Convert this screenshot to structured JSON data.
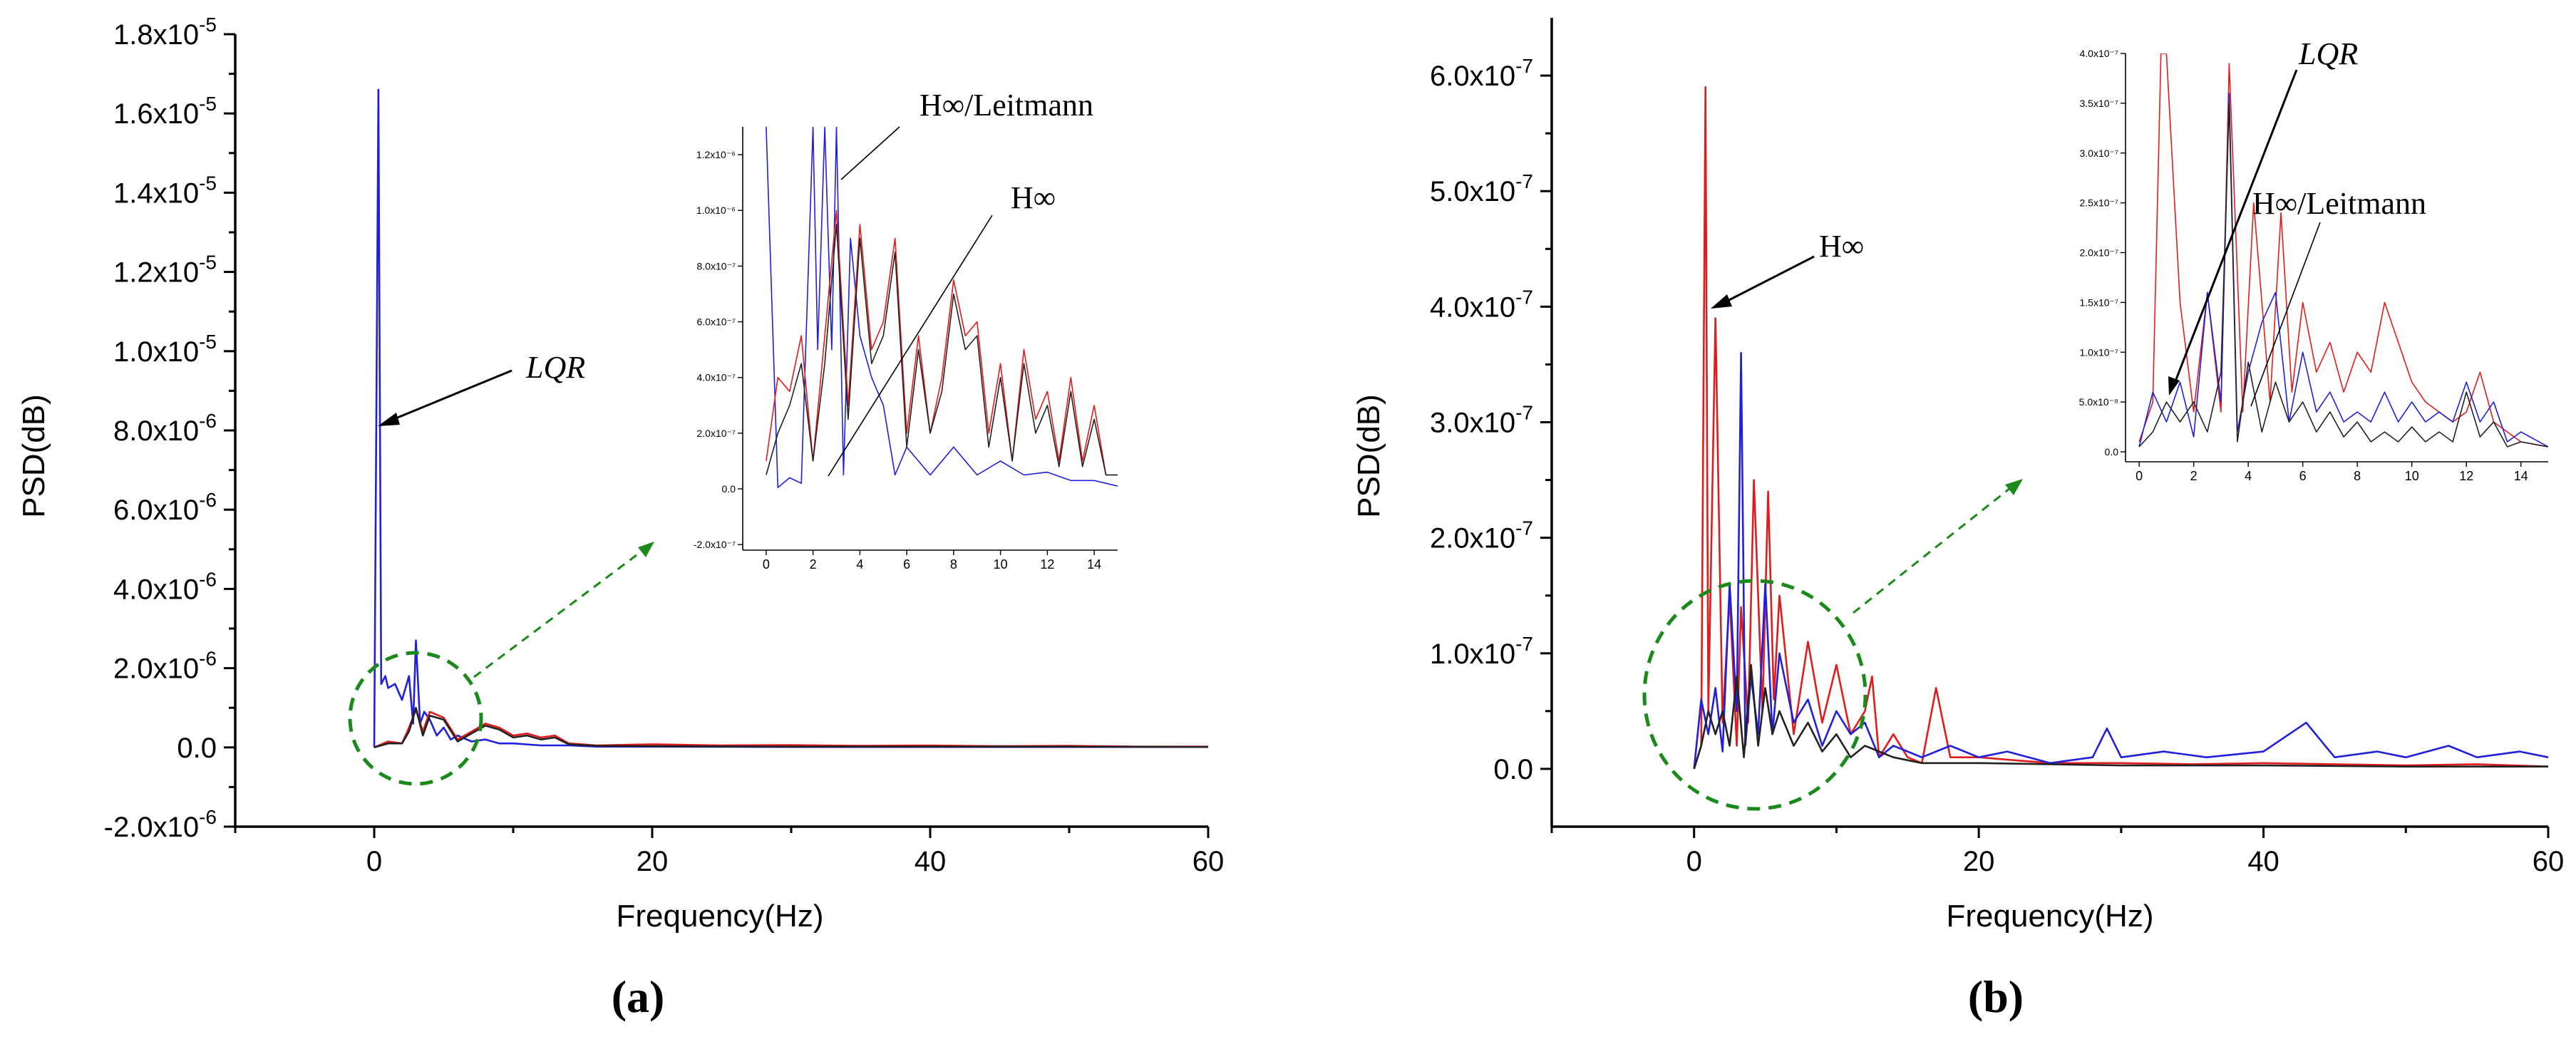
{
  "chart_data": [
    {
      "type": "line",
      "panel_label": "(a)",
      "xlabel": "Frequency(Hz)",
      "ylabel": "PSD(dB)",
      "xlim": [
        -10,
        60
      ],
      "ylim": [
        -2e-06,
        1.8e-05
      ],
      "xticks": [
        0,
        20,
        40,
        60
      ],
      "xtick_labels": [
        "0",
        "20",
        "40",
        "60"
      ],
      "yticks": [
        -2e-06,
        0,
        2e-06,
        4e-06,
        6e-06,
        8e-06,
        1e-05,
        1.2e-05,
        1.4e-05,
        1.6e-05,
        1.8e-05
      ],
      "ytick_mantissa": [
        "-2.0x10",
        "0.0",
        "2.0x10",
        "4.0x10",
        "6.0x10",
        "8.0x10",
        "1.0x10",
        "1.2x10",
        "1.4x10",
        "1.6x10",
        "1.8x10"
      ],
      "ytick_exponent": [
        "-6",
        "",
        "-6",
        "-6",
        "-6",
        "-6",
        "-5",
        "-5",
        "-5",
        "-5",
        "-5"
      ],
      "series": [
        {
          "name": "LQR",
          "color": "#1f1fdc",
          "x": [
            0,
            0.3,
            0.5,
            0.8,
            1.0,
            1.5,
            2.0,
            2.5,
            2.8,
            3.0,
            3.3,
            3.6,
            4.0,
            4.5,
            5.0,
            5.5,
            6,
            7,
            8,
            9,
            10,
            12,
            14,
            16,
            20,
            30,
            40,
            50,
            60
          ],
          "y": [
            0,
            1.66e-05,
            1.6e-06,
            1.8e-06,
            1.5e-06,
            1.6e-06,
            1.2e-06,
            1.8e-06,
            6e-07,
            2.7e-06,
            6e-07,
            9e-07,
            7e-07,
            3e-07,
            5e-07,
            2e-07,
            3e-07,
            1.5e-07,
            2e-07,
            1e-07,
            1e-07,
            5e-08,
            5e-08,
            2e-08,
            2e-08,
            1e-08,
            1e-08,
            1e-08,
            1e-08
          ]
        },
        {
          "name": "H∞",
          "color": "#e01c1c",
          "x": [
            0,
            1,
            2,
            2.5,
            3,
            3.5,
            4,
            5,
            6,
            7,
            8,
            9,
            10,
            11,
            12,
            13,
            14,
            16,
            20,
            25,
            30,
            35,
            40,
            45,
            50,
            55,
            60
          ],
          "y": [
            0,
            1.5e-07,
            1e-07,
            5e-07,
            9.5e-07,
            4e-07,
            9e-07,
            7.5e-07,
            2e-07,
            4e-07,
            6e-07,
            5e-07,
            3e-07,
            3.5e-07,
            2.5e-07,
            3e-07,
            1e-07,
            5e-08,
            8e-08,
            5e-08,
            6e-08,
            4e-08,
            5e-08,
            3e-08,
            4e-08,
            2e-08,
            2e-08
          ]
        },
        {
          "name": "H∞/Leitmann",
          "color": "#222222",
          "x": [
            0,
            1,
            2,
            2.5,
            3,
            3.5,
            4,
            5,
            6,
            7,
            8,
            9,
            10,
            11,
            12,
            13,
            14,
            16,
            20,
            30,
            40,
            50,
            60
          ],
          "y": [
            0,
            1e-07,
            1e-07,
            4e-07,
            1e-06,
            3e-07,
            8e-07,
            7e-07,
            1.5e-07,
            3.5e-07,
            5.5e-07,
            4.5e-07,
            2.5e-07,
            3e-07,
            2e-07,
            2.5e-07,
            8e-08,
            4e-08,
            3e-08,
            2e-08,
            2e-08,
            2e-08,
            1e-08
          ]
        }
      ],
      "annotations": [
        {
          "text": "LQR",
          "style": "italic"
        },
        {
          "text": "H∞/Leitmann"
        },
        {
          "text": "H∞"
        }
      ],
      "inset": {
        "xlim": [
          -1,
          15
        ],
        "ylim": [
          -2.2e-07,
          1.3e-06
        ],
        "xticks": [
          0,
          2,
          4,
          6,
          8,
          10,
          12,
          14
        ],
        "yticks": [
          -2e-07,
          0,
          2e-07,
          4e-07,
          6e-07,
          8e-07,
          1e-06,
          1.2e-06
        ],
        "ytick_labels": [
          "-2.0x10⁻⁷",
          "0.0",
          "2.0x10⁻⁷",
          "4.0x10⁻⁷",
          "6.0x10⁻⁷",
          "8.0x10⁻⁷",
          "1.0x10⁻⁶",
          "1.2x10⁻⁶"
        ],
        "series": [
          {
            "name": "LQR",
            "color": "#1f1fdc",
            "x": [
              0,
              0.5,
              1,
              1.5,
              2,
              2.2,
              2.5,
              2.8,
              3.0,
              3.3,
              3.6,
              4,
              4.5,
              5,
              5.5,
              6,
              7,
              8,
              9,
              10,
              11,
              12,
              13,
              14,
              15
            ],
            "y": [
              1.3e-06,
              5e-09,
              4e-08,
              2e-08,
              1.3e-06,
              5e-07,
              1.3e-06,
              5e-07,
              1.3e-06,
              5e-08,
              9e-07,
              5.5e-07,
              4e-07,
              3e-07,
              5e-08,
              1.5e-07,
              5e-08,
              1.5e-07,
              5e-08,
              1e-07,
              5e-08,
              6e-08,
              3e-08,
              3e-08,
              1e-08
            ]
          },
          {
            "name": "H∞",
            "color": "#e01c1c",
            "x": [
              0,
              0.5,
              1,
              1.5,
              2,
              2.5,
              3,
              3.5,
              4,
              4.5,
              5,
              5.5,
              6,
              6.5,
              7,
              7.5,
              8,
              8.5,
              9,
              9.5,
              10,
              10.5,
              11,
              11.5,
              12,
              12.5,
              13,
              13.5,
              14,
              14.5,
              15
            ],
            "y": [
              1e-07,
              4e-07,
              3.5e-07,
              5.5e-07,
              1e-07,
              5.5e-07,
              1e-06,
              3e-07,
              9.5e-07,
              5e-07,
              6e-07,
              9e-07,
              2e-07,
              5.5e-07,
              2e-07,
              4e-07,
              7.5e-07,
              5.5e-07,
              6e-07,
              2e-07,
              4.5e-07,
              1e-07,
              5e-07,
              2.5e-07,
              3.5e-07,
              1e-07,
              4e-07,
              1e-07,
              3e-07,
              5e-08,
              5e-08
            ]
          },
          {
            "name": "H∞/Leitmann",
            "color": "#222222",
            "x": [
              0,
              0.5,
              1,
              1.5,
              2,
              2.5,
              3,
              3.5,
              4,
              4.5,
              5,
              5.5,
              6,
              6.5,
              7,
              7.5,
              8,
              8.5,
              9,
              9.5,
              10,
              10.5,
              11,
              11.5,
              12,
              12.5,
              13,
              13.5,
              14,
              14.5,
              15
            ],
            "y": [
              5e-08,
              2e-07,
              3e-07,
              4.5e-07,
              1e-07,
              4.5e-07,
              9.5e-07,
              2.5e-07,
              9e-07,
              4.5e-07,
              5.5e-07,
              8.5e-07,
              1.5e-07,
              5e-07,
              2e-07,
              3.5e-07,
              7e-07,
              5e-07,
              5.5e-07,
              1.5e-07,
              4e-07,
              1e-07,
              4.5e-07,
              2e-07,
              3e-07,
              8e-08,
              3.5e-07,
              8e-08,
              2.5e-07,
              5e-08,
              5e-08
            ]
          }
        ]
      }
    },
    {
      "type": "line",
      "panel_label": "(b)",
      "xlabel": "Frequency(Hz)",
      "ylabel": "PSD(dB)",
      "xlim": [
        -10,
        60
      ],
      "ylim": [
        -5e-08,
        6.5e-07
      ],
      "xticks": [
        0,
        20,
        40,
        60
      ],
      "xtick_labels": [
        "0",
        "20",
        "40",
        "60"
      ],
      "yticks": [
        0,
        1e-07,
        2e-07,
        3e-07,
        4e-07,
        5e-07,
        6e-07
      ],
      "ytick_mantissa": [
        "0.0",
        "1.0x10",
        "2.0x10",
        "3.0x10",
        "4.0x10",
        "5.0x10",
        "6.0x10"
      ],
      "ytick_exponent": [
        "",
        "-7",
        "-7",
        "-7",
        "-7",
        "-7",
        "-7"
      ],
      "series": [
        {
          "name": "H∞",
          "color": "#e01c1c",
          "x": [
            0,
            0.5,
            0.8,
            1.0,
            1.5,
            2,
            2.5,
            3,
            3.3,
            3.8,
            4.2,
            4.8,
            5.2,
            5.6,
            6,
            7,
            8,
            9,
            10,
            11,
            12,
            12.5,
            13,
            14,
            15,
            16,
            17,
            18,
            20,
            25,
            30,
            35,
            40,
            45,
            50,
            55,
            60
          ],
          "y": [
            0,
            2e-08,
            5.9e-07,
            5e-08,
            3.9e-07,
            4e-08,
            1.5e-07,
            2e-08,
            1.4e-07,
            4e-08,
            2.5e-07,
            5e-08,
            2.4e-07,
            6e-08,
            1.5e-07,
            3e-08,
            1.1e-07,
            4e-08,
            9e-08,
            3e-08,
            5e-08,
            8e-08,
            1e-08,
            3e-08,
            1e-08,
            5e-09,
            7e-08,
            1e-08,
            1e-08,
            5e-09,
            5e-09,
            4e-09,
            5e-09,
            4e-09,
            3e-09,
            4e-09,
            2e-09
          ]
        },
        {
          "name": "LQR",
          "color": "#1f1fdc",
          "x": [
            0,
            0.5,
            1,
            1.5,
            2,
            2.5,
            3,
            3.3,
            3.6,
            4,
            4.5,
            5,
            5.5,
            6,
            7,
            8,
            9,
            10,
            11,
            12,
            13,
            14,
            16,
            18,
            20,
            22,
            25,
            28,
            29,
            30,
            33,
            36,
            40,
            43,
            45,
            48,
            50,
            53,
            55,
            58,
            60
          ],
          "y": [
            0,
            6e-08,
            3e-08,
            7e-08,
            1.5e-08,
            1.6e-07,
            5e-08,
            3.6e-07,
            2e-08,
            8e-08,
            3e-08,
            1.6e-07,
            3e-08,
            1e-07,
            4e-08,
            6e-08,
            2e-08,
            5e-08,
            3e-08,
            4e-08,
            1e-08,
            2e-08,
            1e-08,
            2e-08,
            1e-08,
            1.5e-08,
            5e-09,
            1e-08,
            3.5e-08,
            1e-08,
            1.5e-08,
            1e-08,
            1.5e-08,
            4e-08,
            1e-08,
            1.5e-08,
            1e-08,
            2e-08,
            1e-08,
            1.5e-08,
            1e-08
          ]
        },
        {
          "name": "H∞/Leitmann",
          "color": "#222222",
          "x": [
            0,
            0.5,
            1,
            1.5,
            2,
            2.5,
            3,
            3.5,
            4,
            4.5,
            5,
            5.5,
            6,
            7,
            8,
            9,
            10,
            11,
            12,
            14,
            16,
            20,
            30,
            40,
            50,
            60
          ],
          "y": [
            0,
            2e-08,
            5e-08,
            3e-08,
            5e-08,
            2e-08,
            8e-08,
            1e-08,
            9e-08,
            2e-08,
            7e-08,
            3e-08,
            5e-08,
            2e-08,
            4e-08,
            1.5e-08,
            3e-08,
            1e-08,
            2e-08,
            1e-08,
            5e-09,
            5e-09,
            3e-09,
            3e-09,
            2e-09,
            2e-09
          ]
        }
      ],
      "annotations": [
        {
          "text": "H∞"
        },
        {
          "text": "LQR",
          "style": "italic"
        },
        {
          "text": "H∞/Leitmann"
        }
      ],
      "inset": {
        "xlim": [
          -0.5,
          15
        ],
        "ylim": [
          -1e-08,
          4e-07
        ],
        "xticks": [
          0,
          2,
          4,
          6,
          8,
          10,
          12,
          14
        ],
        "yticks": [
          0,
          5e-08,
          1e-07,
          1.5e-07,
          2e-07,
          2.5e-07,
          3e-07,
          3.5e-07,
          4e-07
        ],
        "ytick_labels": [
          "0.0",
          "5.0x10⁻⁸",
          "1.0x10⁻⁷",
          "1.5x10⁻⁷",
          "2.0x10⁻⁷",
          "2.5x10⁻⁷",
          "3.0x10⁻⁷",
          "3.5x10⁻⁷",
          "4.0x10⁻⁷"
        ],
        "series": [
          {
            "name": "H∞",
            "color": "#e01c1c",
            "x": [
              0,
              0.5,
              0.8,
              1.0,
              1.5,
              2,
              2.5,
              3,
              3.3,
              3.8,
              4.2,
              4.8,
              5.2,
              5.6,
              6,
              6.5,
              7,
              7.5,
              8,
              8.5,
              9,
              9.5,
              10,
              10.5,
              11,
              11.5,
              12,
              12.5,
              13,
              13.5,
              14,
              15
            ],
            "y": [
              1e-08,
              5e-08,
              4e-07,
              4e-07,
              1.5e-07,
              4e-08,
              1.6e-07,
              4e-08,
              3.9e-07,
              4e-08,
              2.5e-07,
              5e-08,
              2.4e-07,
              6e-08,
              1.5e-07,
              8e-08,
              1.1e-07,
              6e-08,
              1e-07,
              8e-08,
              1.5e-07,
              1.1e-07,
              7e-08,
              5e-08,
              4e-08,
              3e-08,
              4e-08,
              8e-08,
              3e-08,
              2e-08,
              1e-08,
              5e-09
            ]
          },
          {
            "name": "LQR",
            "color": "#1f1fdc",
            "x": [
              0,
              0.5,
              1,
              1.5,
              2,
              2.5,
              3,
              3.3,
              3.6,
              4,
              4.5,
              5,
              5.5,
              6,
              6.5,
              7,
              7.5,
              8,
              8.5,
              9,
              9.5,
              10,
              10.5,
              11,
              11.5,
              12,
              12.5,
              13,
              13.5,
              14,
              15
            ],
            "y": [
              5e-09,
              6e-08,
              3e-08,
              7e-08,
              1.5e-08,
              1.6e-07,
              5e-08,
              3.6e-07,
              2e-08,
              8e-08,
              1.3e-07,
              1.6e-07,
              3e-08,
              1e-07,
              4e-08,
              6e-08,
              3e-08,
              4e-08,
              3e-08,
              6e-08,
              3e-08,
              5e-08,
              3e-08,
              4e-08,
              3e-08,
              7e-08,
              3e-08,
              5e-08,
              1e-08,
              2e-08,
              5e-09
            ]
          },
          {
            "name": "H∞/Leitmann",
            "color": "#222222",
            "x": [
              0,
              0.5,
              1,
              1.5,
              2,
              2.5,
              3,
              3.3,
              3.6,
              4,
              4.5,
              5,
              5.5,
              6,
              6.5,
              7,
              7.5,
              8,
              8.5,
              9,
              9.5,
              10,
              10.5,
              11,
              11.5,
              12,
              12.5,
              13,
              13.5,
              14,
              15
            ],
            "y": [
              5e-09,
              2e-08,
              5e-08,
              3e-08,
              5e-08,
              2e-08,
              8e-08,
              3.5e-07,
              1e-08,
              9e-08,
              2e-08,
              7e-08,
              3e-08,
              5e-08,
              2e-08,
              4e-08,
              1.5e-08,
              3e-08,
              1e-08,
              2e-08,
              1e-08,
              2.5e-08,
              1e-08,
              2e-08,
              1e-08,
              6e-08,
              1.5e-08,
              3e-08,
              5e-09,
              1e-08,
              5e-09
            ]
          }
        ]
      }
    }
  ]
}
